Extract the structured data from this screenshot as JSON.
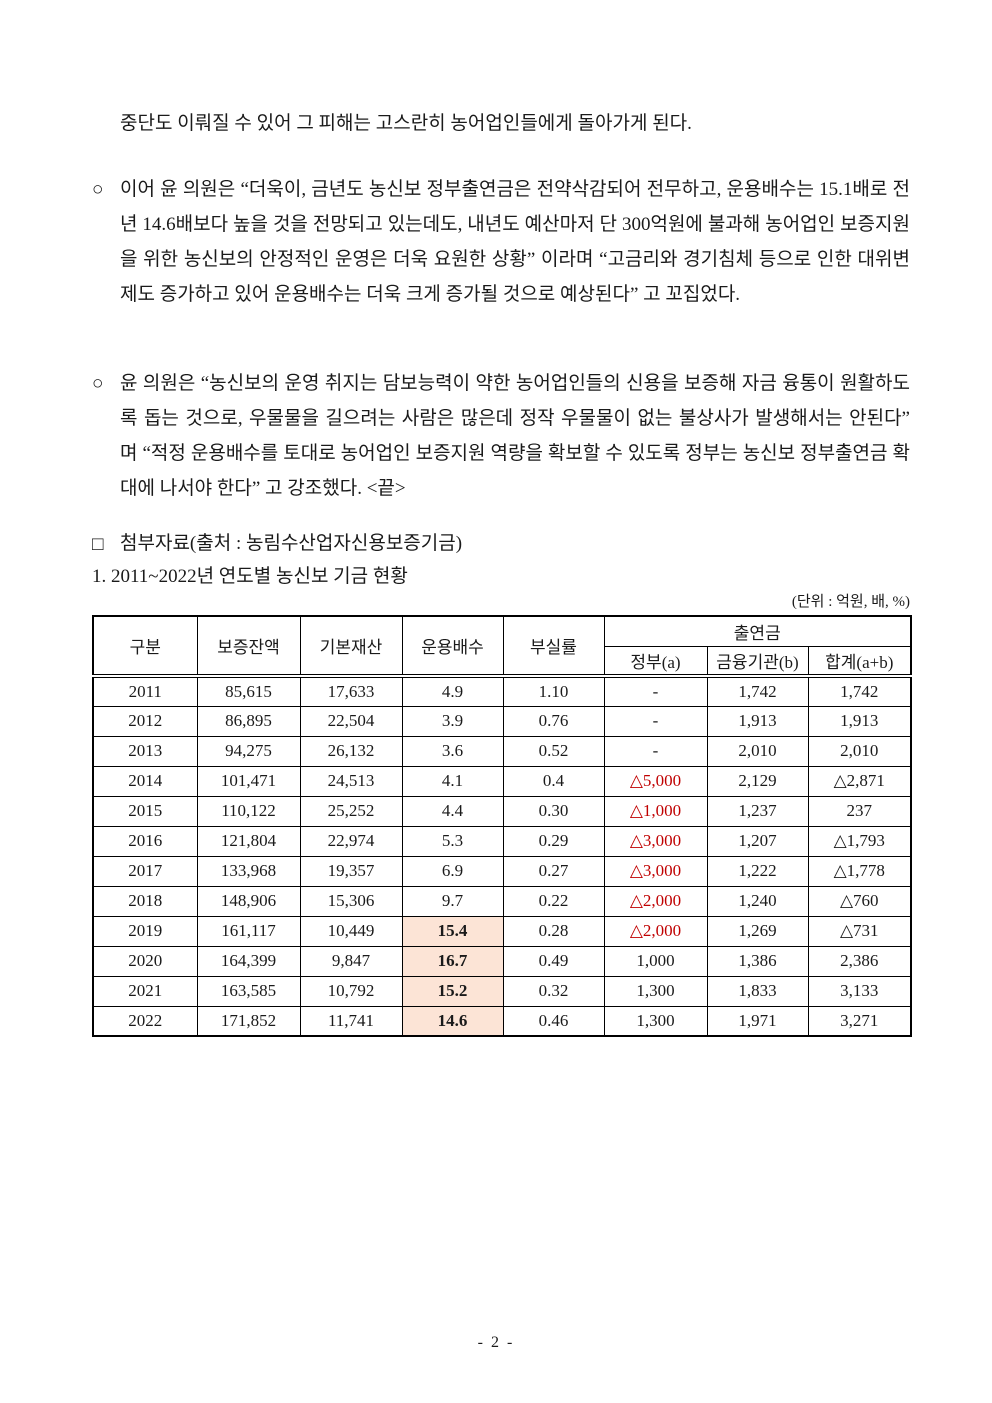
{
  "page": {
    "paragraph_intro": "중단도 이뤄질 수 있어 그 피해는 고스란히 농어업인들에게 돌아가게 된다.",
    "bullets": [
      {
        "marker": "○",
        "text": "이어 윤 의원은 “더욱이, 금년도 농신보 정부출연금은 전약삭감되어 전무하고, 운용배수는 15.1배로 전년 14.6배보다 높을 것을 전망되고 있는데도, 내년도 예산마저 단 300억원에 불과해 농어업인 보증지원을 위한 농신보의 안정적인 운영은 더욱 요원한 상황” 이라며 “고금리와 경기침체 등으로 인한 대위변제도 증가하고 있어 운용배수는 더욱 크게 증가될 것으로 예상된다” 고 꼬집었다."
      },
      {
        "marker": "○",
        "text": "윤 의원은 “농신보의 운영 취지는 담보능력이 약한 농어업인들의 신용을 보증해 자금 융통이 원활하도록 돕는 것으로, 우물물을 길으려는 사람은 많은데 정작 우물물이 없는 불상사가 발생해서는 안된다” 며 “적정 운용배수를 토대로 농어업인 보증지원 역량을 확보할 수 있도록 정부는 농신보 정부출연금 확대에 나서야 한다” 고 강조했다. <끝>"
      }
    ],
    "attachment": {
      "marker": "□",
      "text": "첨부자료(출처 : 농림수산업자신용보증기금)"
    },
    "section_title": "1. 2011~2022년 연도별 농신보 기금 현황",
    "page_number": "- 2 -"
  },
  "table": {
    "unit_label": "(단위 : 억원, 배, %)",
    "headers": {
      "col_gubun": "구분",
      "col_guarantee_balance": "보증잔액",
      "col_basic_assets": "기본재산",
      "col_operation_multiple": "운용배수",
      "col_default_rate": "부실률",
      "group_contribution": "출연금",
      "sub_government": "정부(a)",
      "sub_financial_institution": "금융기관(b)",
      "sub_total": "합계(a+b)"
    },
    "colors": {
      "highlight_bg": "#fce4d6",
      "negative_red": "#c00000"
    },
    "rows": [
      {
        "year": "2011",
        "cells": [
          {
            "t": "85,615"
          },
          {
            "t": "17,633"
          },
          {
            "t": "4.9"
          },
          {
            "t": "1.10"
          },
          {
            "t": "-"
          },
          {
            "t": "1,742"
          },
          {
            "t": "1,742"
          }
        ]
      },
      {
        "year": "2012",
        "cells": [
          {
            "t": "86,895"
          },
          {
            "t": "22,504"
          },
          {
            "t": "3.9"
          },
          {
            "t": "0.76"
          },
          {
            "t": "-"
          },
          {
            "t": "1,913"
          },
          {
            "t": "1,913"
          }
        ]
      },
      {
        "year": "2013",
        "cells": [
          {
            "t": "94,275"
          },
          {
            "t": "26,132"
          },
          {
            "t": "3.6"
          },
          {
            "t": "0.52"
          },
          {
            "t": "-"
          },
          {
            "t": "2,010"
          },
          {
            "t": "2,010"
          }
        ]
      },
      {
        "year": "2014",
        "cells": [
          {
            "t": "101,471"
          },
          {
            "t": "24,513"
          },
          {
            "t": "4.1"
          },
          {
            "t": "0.4"
          },
          {
            "t": "△5,000",
            "red": true
          },
          {
            "t": "2,129"
          },
          {
            "t": "△2,871"
          }
        ]
      },
      {
        "year": "2015",
        "cells": [
          {
            "t": "110,122"
          },
          {
            "t": "25,252"
          },
          {
            "t": "4.4"
          },
          {
            "t": "0.30"
          },
          {
            "t": "△1,000",
            "red": true
          },
          {
            "t": "1,237"
          },
          {
            "t": "237"
          }
        ]
      },
      {
        "year": "2016",
        "cells": [
          {
            "t": "121,804"
          },
          {
            "t": "22,974"
          },
          {
            "t": "5.3"
          },
          {
            "t": "0.29"
          },
          {
            "t": "△3,000",
            "red": true
          },
          {
            "t": "1,207"
          },
          {
            "t": "△1,793"
          }
        ]
      },
      {
        "year": "2017",
        "cells": [
          {
            "t": "133,968"
          },
          {
            "t": "19,357"
          },
          {
            "t": "6.9"
          },
          {
            "t": "0.27"
          },
          {
            "t": "△3,000",
            "red": true
          },
          {
            "t": "1,222"
          },
          {
            "t": "△1,778"
          }
        ]
      },
      {
        "year": "2018",
        "cells": [
          {
            "t": "148,906"
          },
          {
            "t": "15,306"
          },
          {
            "t": "9.7"
          },
          {
            "t": "0.22"
          },
          {
            "t": "△2,000",
            "red": true
          },
          {
            "t": "1,240"
          },
          {
            "t": "△760"
          }
        ]
      },
      {
        "year": "2019",
        "cells": [
          {
            "t": "161,117"
          },
          {
            "t": "10,449"
          },
          {
            "t": "15.4",
            "hl": true
          },
          {
            "t": "0.28"
          },
          {
            "t": "△2,000",
            "red": true
          },
          {
            "t": "1,269"
          },
          {
            "t": "△731"
          }
        ]
      },
      {
        "year": "2020",
        "cells": [
          {
            "t": "164,399"
          },
          {
            "t": "9,847"
          },
          {
            "t": "16.7",
            "hl": true
          },
          {
            "t": "0.49"
          },
          {
            "t": "1,000"
          },
          {
            "t": "1,386"
          },
          {
            "t": "2,386"
          }
        ]
      },
      {
        "year": "2021",
        "cells": [
          {
            "t": "163,585"
          },
          {
            "t": "10,792"
          },
          {
            "t": "15.2",
            "hl": true
          },
          {
            "t": "0.32"
          },
          {
            "t": "1,300"
          },
          {
            "t": "1,833"
          },
          {
            "t": "3,133"
          }
        ]
      },
      {
        "year": "2022",
        "cells": [
          {
            "t": "171,852"
          },
          {
            "t": "11,741"
          },
          {
            "t": "14.6",
            "hl": true
          },
          {
            "t": "0.46"
          },
          {
            "t": "1,300"
          },
          {
            "t": "1,971"
          },
          {
            "t": "3,271"
          }
        ]
      }
    ]
  }
}
